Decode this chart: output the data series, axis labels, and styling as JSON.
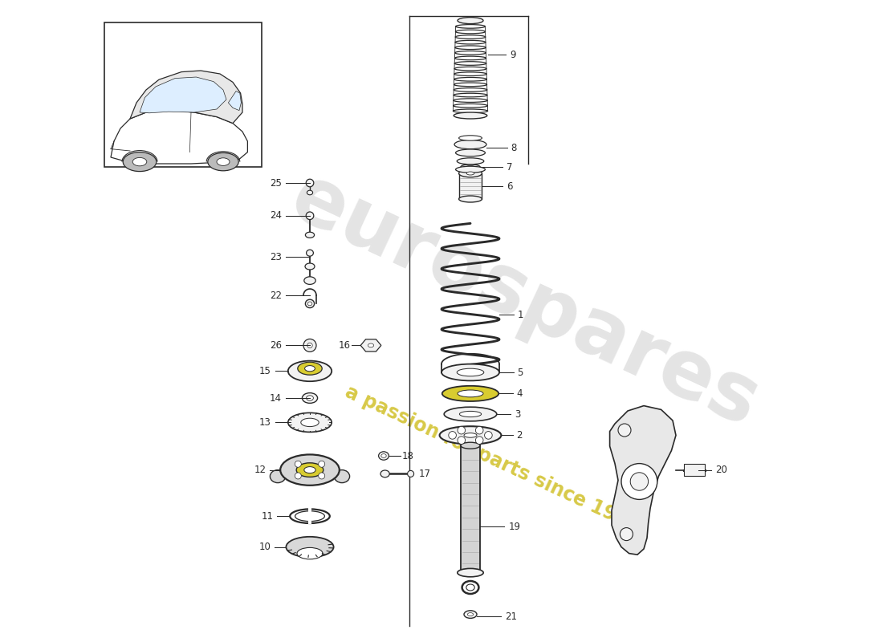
{
  "bg": "#ffffff",
  "lc": "#2a2a2a",
  "pf": "#f2f2f2",
  "yf": "#d8cc30",
  "gf": "#d0d0d0",
  "wm_gray": "#c0c0c0",
  "wm_yellow": "#c8b400",
  "rcx": 0.595,
  "lcx": 0.345,
  "label_fs": 8.5
}
